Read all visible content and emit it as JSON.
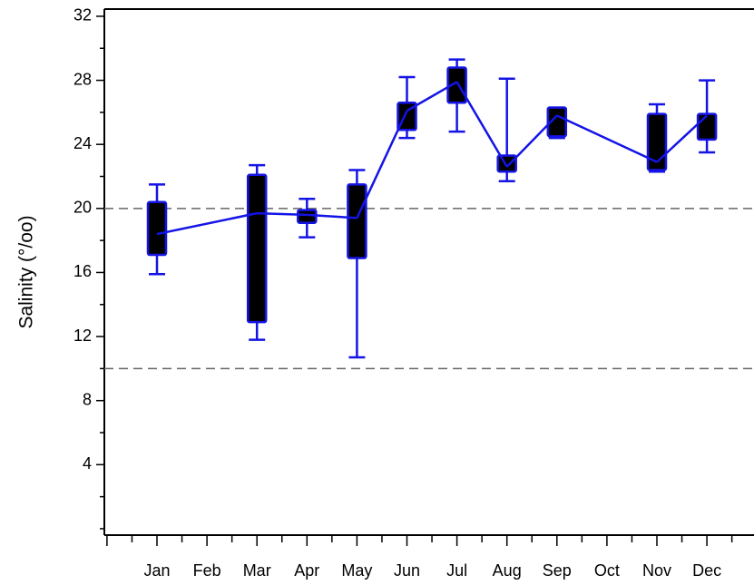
{
  "chart_data": {
    "type": "box",
    "ylabel": "Salinity (°/oo)",
    "categories": [
      "Jan",
      "Feb",
      "Mar",
      "Apr",
      "May",
      "Jun",
      "Jul",
      "Aug",
      "Sep",
      "Oct",
      "Nov",
      "Dec"
    ],
    "whisker_low": [
      15.9,
      null,
      11.8,
      18.2,
      10.7,
      24.4,
      24.8,
      21.7,
      24.4,
      null,
      22.3,
      23.5
    ],
    "q1": [
      17.1,
      null,
      12.9,
      19.1,
      16.9,
      24.9,
      26.6,
      22.3,
      24.5,
      null,
      22.4,
      24.3
    ],
    "q3": [
      20.4,
      null,
      22.1,
      19.9,
      21.5,
      26.6,
      28.8,
      23.3,
      26.3,
      null,
      25.9,
      25.9
    ],
    "whisker_high": [
      21.5,
      null,
      22.7,
      20.6,
      22.4,
      28.2,
      29.3,
      28.1,
      26.3,
      null,
      26.5,
      28.0
    ],
    "line_values": [
      18.4,
      null,
      19.7,
      19.6,
      19.4,
      26.1,
      27.9,
      22.6,
      25.8,
      null,
      22.9,
      25.8
    ],
    "box_fill": "#000000",
    "color": "#1414e6",
    "ylim": [
      -0.4,
      32.45
    ],
    "yticks": [
      4,
      8,
      12,
      16,
      20,
      24,
      28,
      32
    ],
    "yminor_ticks": [
      0,
      2,
      6,
      10,
      14,
      18,
      22,
      26,
      30
    ],
    "hlines": [
      20,
      10
    ],
    "hline_color": "#666666"
  }
}
